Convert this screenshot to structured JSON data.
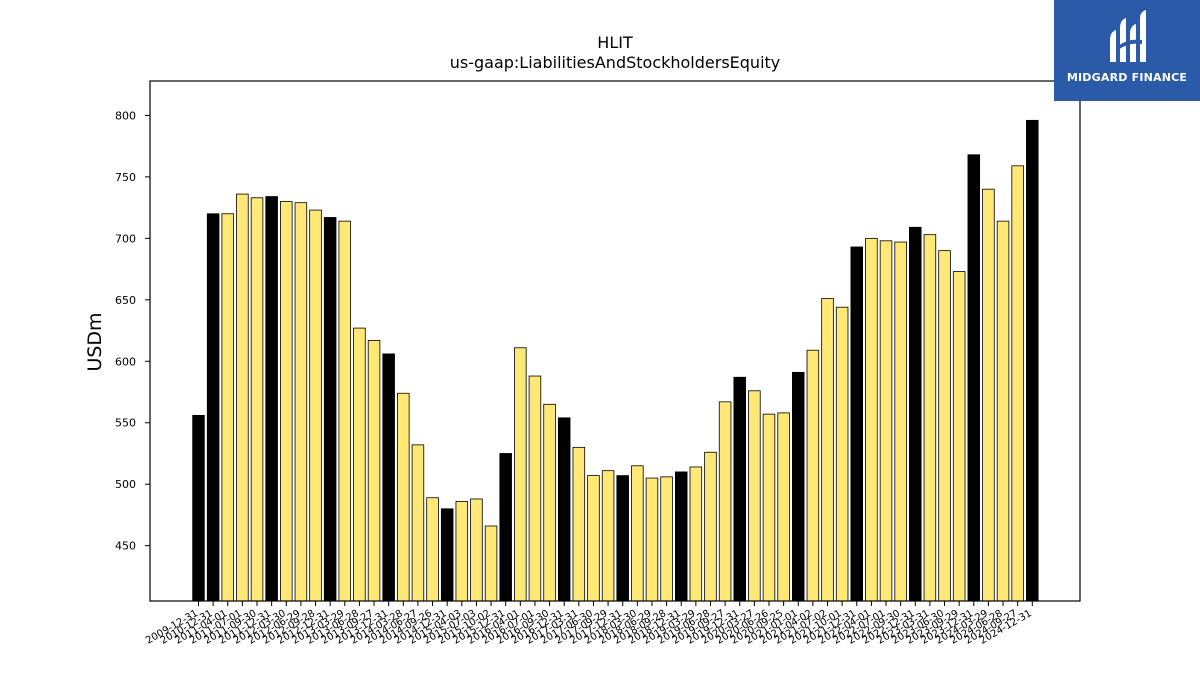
{
  "chart_data": {
    "type": "bar",
    "title": "HLIT",
    "subtitle": "us-gaap:LiabilitiesAndStockholdersEquity",
    "xlabel": "",
    "ylabel": "USDm",
    "ylim": [
      405,
      828
    ],
    "yticks": [
      450,
      500,
      550,
      600,
      650,
      700,
      750,
      800
    ],
    "grid": false,
    "colors": {
      "annual": "#000000",
      "quarterly": "#ffe875",
      "edge": "#000000"
    },
    "categories": [
      "2009-12-31",
      "2010-12-31",
      "2011-04-01",
      "2011-07-01",
      "2011-09-30",
      "2011-12-31",
      "2012-03-30",
      "2012-06-29",
      "2012-09-28",
      "2012-12-31",
      "2013-03-29",
      "2013-06-28",
      "2013-09-27",
      "2013-12-31",
      "2014-03-28",
      "2014-06-27",
      "2014-09-26",
      "2014-12-31",
      "2015-04-03",
      "2015-07-03",
      "2015-10-02",
      "2015-12-31",
      "2016-04-01",
      "2016-07-01",
      "2016-09-30",
      "2016-12-31",
      "2017-03-31",
      "2017-06-30",
      "2017-09-29",
      "2017-12-31",
      "2018-03-30",
      "2018-06-29",
      "2018-09-28",
      "2018-12-31",
      "2019-03-29",
      "2019-06-28",
      "2019-09-27",
      "2019-12-31",
      "2020-03-27",
      "2020-06-26",
      "2020-09-25",
      "2021-01-01",
      "2021-04-02",
      "2021-07-02",
      "2021-10-01",
      "2021-12-31",
      "2022-04-01",
      "2022-07-01",
      "2022-09-30",
      "2022-12-31",
      "2023-03-31",
      "2023-06-30",
      "2023-09-29",
      "2023-12-31",
      "2024-03-29",
      "2024-06-28",
      "2024-09-27",
      "2024-12-31"
    ],
    "values": [
      556,
      720,
      720,
      736,
      733,
      734,
      730,
      729,
      723,
      717,
      714,
      627,
      617,
      606,
      574,
      532,
      489,
      480,
      486,
      488,
      466,
      525,
      611,
      588,
      565,
      554,
      530,
      507,
      511,
      507,
      515,
      505,
      506,
      510,
      514,
      526,
      567,
      587,
      576,
      557,
      558,
      591,
      609,
      651,
      644,
      693,
      700,
      698,
      697,
      709,
      703,
      690,
      673,
      768,
      740,
      714,
      759,
      796
    ],
    "annual": [
      true,
      true,
      false,
      false,
      false,
      true,
      false,
      false,
      false,
      true,
      false,
      false,
      false,
      true,
      false,
      false,
      false,
      true,
      false,
      false,
      false,
      true,
      false,
      false,
      false,
      true,
      false,
      false,
      false,
      true,
      false,
      false,
      false,
      true,
      false,
      false,
      false,
      true,
      false,
      false,
      false,
      true,
      false,
      false,
      false,
      true,
      false,
      false,
      false,
      true,
      false,
      false,
      false,
      true,
      false,
      false,
      false,
      true
    ]
  },
  "logo": {
    "text": "MIDGARD FINANCE",
    "icon": "midgard-logo-mark-icon",
    "color": "#2a5aa8"
  }
}
